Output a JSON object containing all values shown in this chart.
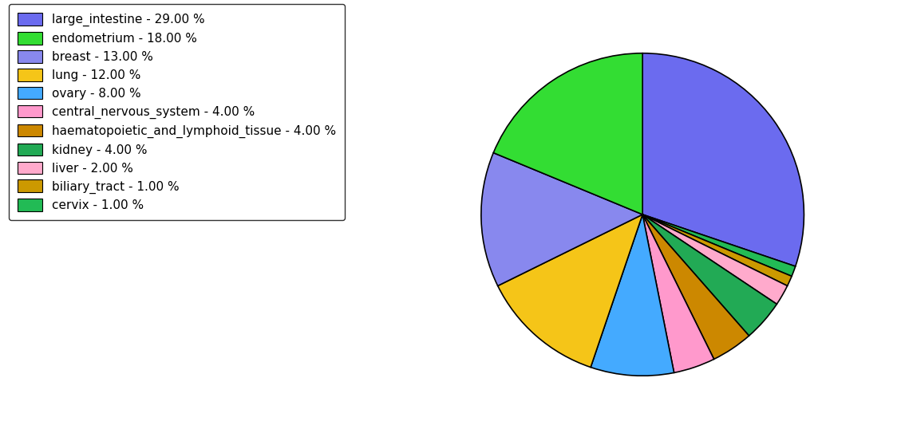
{
  "labels": [
    "large_intestine",
    "endometrium",
    "breast",
    "lung",
    "ovary",
    "central_nervous_system",
    "haematopoietic_and_lymphoid_tissue",
    "kidney",
    "liver",
    "biliary_tract",
    "cervix"
  ],
  "values": [
    29,
    18,
    13,
    12,
    8,
    4,
    4,
    4,
    2,
    1,
    1
  ],
  "colors": [
    "#6b6bef",
    "#33dd33",
    "#8888ee",
    "#f5c518",
    "#44aaff",
    "#ff99cc",
    "#cc8800",
    "#22aa55",
    "#ffaacc",
    "#cc9900",
    "#22bb55"
  ],
  "legend_labels": [
    "large_intestine - 29.00 %",
    "endometrium - 18.00 %",
    "breast - 13.00 %",
    "lung - 12.00 %",
    "ovary - 8.00 %",
    "central_nervous_system - 4.00 %",
    "haematopoietic_and_lymphoid_tissue - 4.00 %",
    "kidney - 4.00 %",
    "liver - 2.00 %",
    "biliary_tract - 1.00 %",
    "cervix - 1.00 %"
  ],
  "pie_order_values": [
    29,
    1,
    1,
    2,
    4,
    4,
    4,
    8,
    12,
    13,
    18
  ],
  "pie_order_colors": [
    "#6b6bef",
    "#22bb55",
    "#cc9900",
    "#ffaacc",
    "#22aa55",
    "#cc8800",
    "#ff99cc",
    "#44aaff",
    "#f5c518",
    "#8888ee",
    "#33dd33"
  ],
  "startangle": 90,
  "figsize": [
    11.34,
    5.38
  ],
  "dpi": 100
}
